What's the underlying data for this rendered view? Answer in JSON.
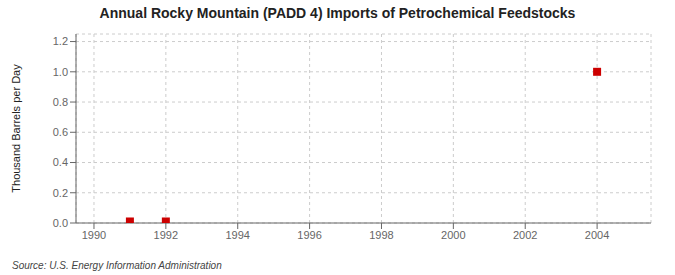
{
  "chart_data": {
    "type": "scatter",
    "title": "Annual Rocky Mountain (PADD 4) Imports of Petrochemical Feedstocks",
    "ylabel": "Thousand Barrels per Day",
    "annotations": [
      "Source: U.S. Energy Information Administration"
    ],
    "x": [
      1991,
      1992,
      2004
    ],
    "values": [
      0.01,
      0.01,
      1.0
    ],
    "color": "#cc0000",
    "marker": "square",
    "xlim": [
      1989.5,
      2005.5
    ],
    "ylim": [
      0.0,
      1.25
    ],
    "xticks": [
      1990,
      1992,
      1994,
      1996,
      1998,
      2000,
      2002,
      2004
    ],
    "yticks": [
      {
        "value": 0.0,
        "label": "0.0"
      },
      0.2,
      0.4,
      0.6,
      0.8,
      {
        "value": 1.0,
        "label": "1.0"
      },
      1.2
    ],
    "grid": true
  }
}
